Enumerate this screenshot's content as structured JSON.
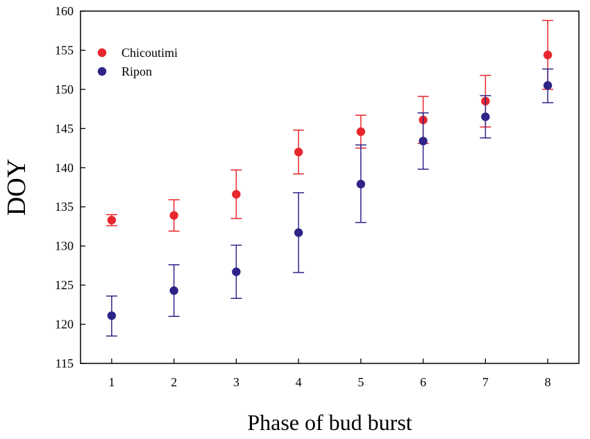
{
  "chart_data": {
    "type": "scatter",
    "title": "",
    "xlabel": "Phase of bud burst",
    "ylabel": "DOY",
    "x": [
      1,
      2,
      3,
      4,
      5,
      6,
      7,
      8
    ],
    "xlim": [
      0.5,
      8.5
    ],
    "ylim": [
      115,
      160
    ],
    "xticks": [
      1,
      2,
      3,
      4,
      5,
      6,
      7,
      8
    ],
    "yticks": [
      115,
      120,
      125,
      130,
      135,
      140,
      145,
      150,
      155,
      160
    ],
    "grid": false,
    "legend_position": "top-left",
    "series": [
      {
        "name": "Chicoutimi",
        "color": "#e8262d",
        "values": [
          133.3,
          133.9,
          136.6,
          142.0,
          144.6,
          146.1,
          148.5,
          154.4
        ],
        "error_upper": [
          134.0,
          135.9,
          139.7,
          144.8,
          146.7,
          149.1,
          151.8,
          158.8
        ],
        "error_lower": [
          132.6,
          131.9,
          133.5,
          139.2,
          142.5,
          143.1,
          145.2,
          150.0
        ]
      },
      {
        "name": "Ripon",
        "color": "#2e2387",
        "values": [
          121.1,
          124.3,
          126.7,
          131.7,
          137.9,
          143.4,
          146.5,
          150.5
        ],
        "error_upper": [
          123.6,
          127.6,
          130.1,
          136.8,
          142.9,
          147.0,
          149.2,
          152.6
        ],
        "error_lower": [
          118.5,
          121.0,
          123.3,
          126.6,
          133.0,
          139.8,
          143.8,
          148.3
        ]
      }
    ]
  }
}
